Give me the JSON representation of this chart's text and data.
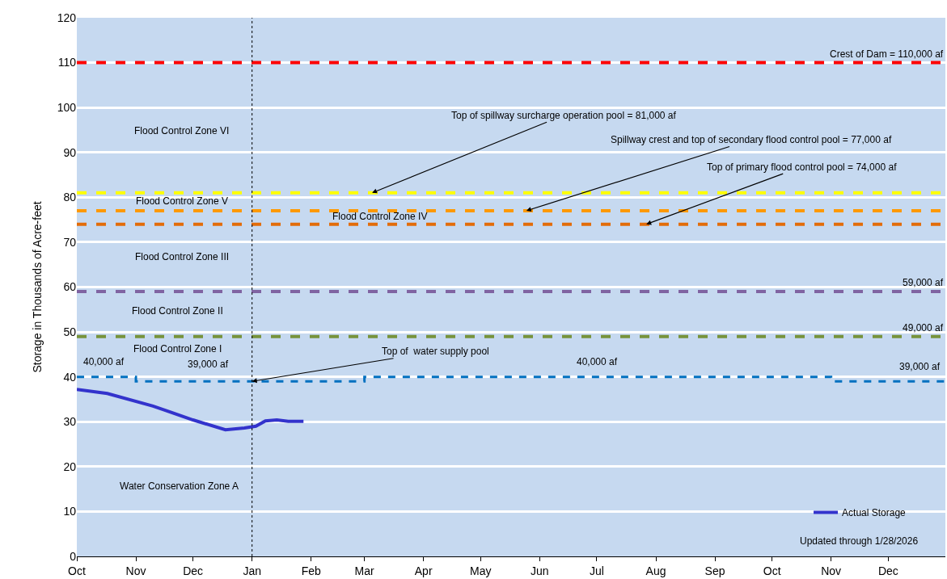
{
  "chart_data": {
    "type": "line",
    "ylabel": "Storage in Thousands of Acre-feet",
    "xlim": [
      "2025-10-01",
      "2026-12-31"
    ],
    "xticks": [
      {
        "value": "2025-10-01",
        "label": "Oct"
      },
      {
        "value": "2025-11-01",
        "label": "Nov"
      },
      {
        "value": "2025-12-01",
        "label": "Dec"
      },
      {
        "value": "2026-01-01",
        "label": "Jan"
      },
      {
        "value": "2026-02-01",
        "label": "Feb"
      },
      {
        "value": "2026-03-01",
        "label": "Mar"
      },
      {
        "value": "2026-04-01",
        "label": "Apr"
      },
      {
        "value": "2026-05-01",
        "label": "May"
      },
      {
        "value": "2026-06-01",
        "label": "Jun"
      },
      {
        "value": "2026-07-01",
        "label": "Jul"
      },
      {
        "value": "2026-08-01",
        "label": "Aug"
      },
      {
        "value": "2026-09-01",
        "label": "Sep"
      },
      {
        "value": "2026-10-01",
        "label": "Oct"
      },
      {
        "value": "2026-11-01",
        "label": "Nov"
      },
      {
        "value": "2026-12-01",
        "label": "Dec"
      }
    ],
    "ylim": [
      0,
      120
    ],
    "yticks": [
      0,
      10,
      20,
      30,
      40,
      50,
      60,
      70,
      80,
      90,
      100,
      110,
      120
    ],
    "grid": "y",
    "legend": "bottom right",
    "series": [
      {
        "type": "step",
        "color": "#0070c0",
        "line_style": "dashed",
        "x": [
          "2025-10-01",
          "2025-11-01",
          "2026-03-01",
          "2026-11-01",
          "2026-12-31"
        ],
        "values": [
          40,
          39,
          40,
          39,
          39
        ]
      },
      {
        "name": "Actual Storage",
        "color": "#3333cc",
        "line_style": "solid",
        "x": [
          "2025-10-01",
          "2025-10-17",
          "2025-11-10",
          "2025-12-01",
          "2025-12-18",
          "2025-12-28",
          "2026-01-03",
          "2026-01-08",
          "2026-01-14",
          "2026-01-20",
          "2026-01-28"
        ],
        "values": [
          37.2,
          36.3,
          33.5,
          30.4,
          28.2,
          28.6,
          29,
          30.2,
          30.4,
          30.1,
          30.1
        ]
      }
    ],
    "ref_lines": [
      {
        "axis": "y",
        "value": 110,
        "label": "Crest of Dam = 110,000 af",
        "color": "#ff0000",
        "line_style": "dashed"
      },
      {
        "axis": "y",
        "value": 81,
        "color": "#ffff00",
        "line_style": "dashed"
      },
      {
        "axis": "y",
        "value": 77,
        "color": "#ff9900",
        "line_style": "dashed"
      },
      {
        "axis": "y",
        "value": 74,
        "color": "#e36c09",
        "line_style": "dashed"
      },
      {
        "axis": "y",
        "value": 59,
        "label": "59,000 af",
        "color": "#8064a2",
        "line_style": "dashed"
      },
      {
        "axis": "y",
        "value": 49,
        "label": "49,000 af",
        "color": "#77933c",
        "line_style": "dashed"
      },
      {
        "axis": "x",
        "value": "2026-01-01",
        "color": "#000000",
        "line_style": "dotted"
      }
    ],
    "annotations": [
      "Flood Control Zone VI",
      "Flood Control Zone V",
      "Flood Control Zone IV",
      "Flood Control Zone III",
      "Flood Control Zone II",
      "Flood Control Zone I",
      "Water Conservation Zone A",
      {
        "text": "Top of spillway surcharge operation pool = 81,000 af",
        "x": "2026-03-05",
        "y": 81
      },
      {
        "text": "Spillway crest and top of secondary flood control pool = 77,000 af",
        "x": "2026-05-25",
        "y": 77
      },
      {
        "text": "Top of primary flood control pool = 74,000 af",
        "x": "2026-07-27",
        "y": 74
      },
      {
        "text": "Top of  water supply pool",
        "x": "2026-01-01",
        "y": 39
      },
      "40,000 af",
      "39,000 af",
      "40,000 af",
      "39,000 af",
      "Updated through 1/28/2026"
    ]
  }
}
